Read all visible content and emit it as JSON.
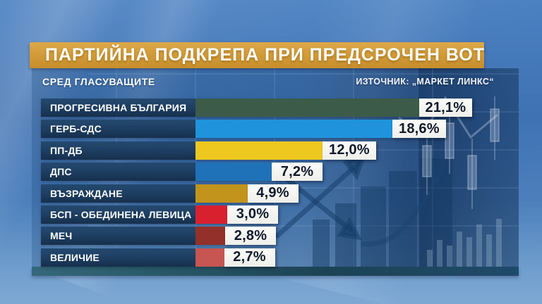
{
  "header": {
    "title": "ПАРТИЙНА ПОДКРЕПА ПРИ ПРЕДСРОЧЕН ВОТ",
    "subtitle": "СРЕД ГЛАСУВАЩИТЕ",
    "source": "ИЗТОЧНИК: „МАРКЕТ ЛИНКС“"
  },
  "colors": {
    "title_bar_orange": "#d19a36",
    "label_box_navy": "#1d3d60",
    "value_box_white": "#f5f5f2",
    "value_text_dark": "#0e1a2b",
    "background_blue": "#4a80c1",
    "panel_tint": "#1a4678"
  },
  "chart_data": {
    "type": "bar",
    "orientation": "horizontal",
    "title": "ПАРТИЙНА ПОДКРЕПА ПРИ ПРЕДСРОЧЕН ВОТ",
    "subtitle": "СРЕД ГЛАСУВАЩИТЕ",
    "source": "ИЗТОЧНИК: „МАРКЕТ ЛИНКС“",
    "unit": "%",
    "decimal_separator": ",",
    "xlim": [
      0,
      23
    ],
    "grid": false,
    "legend_position": "none",
    "categories": [
      "ПРОГРЕСИВНА БЪЛГАРИЯ",
      "ГЕРБ-СДС",
      "ПП-ДБ",
      "ДПС",
      "ВЪЗРАЖДАНЕ",
      "БСП - ОБЕДИНЕНА ЛЕВИЦА",
      "МЕЧ",
      "ВЕЛИЧИЕ"
    ],
    "values": [
      21.1,
      18.6,
      12.0,
      7.2,
      4.9,
      3.0,
      2.8,
      2.7
    ],
    "value_labels": [
      "21,1%",
      "18,6%",
      "12,0%",
      "7,2%",
      "4,9%",
      "3,0%",
      "2,8%",
      "2,7%"
    ],
    "bar_colors": [
      "#3d5b49",
      "#1f93dc",
      "#eec81f",
      "#1f72b8",
      "#c2941c",
      "#d8202f",
      "#93302a",
      "#c75551"
    ]
  }
}
